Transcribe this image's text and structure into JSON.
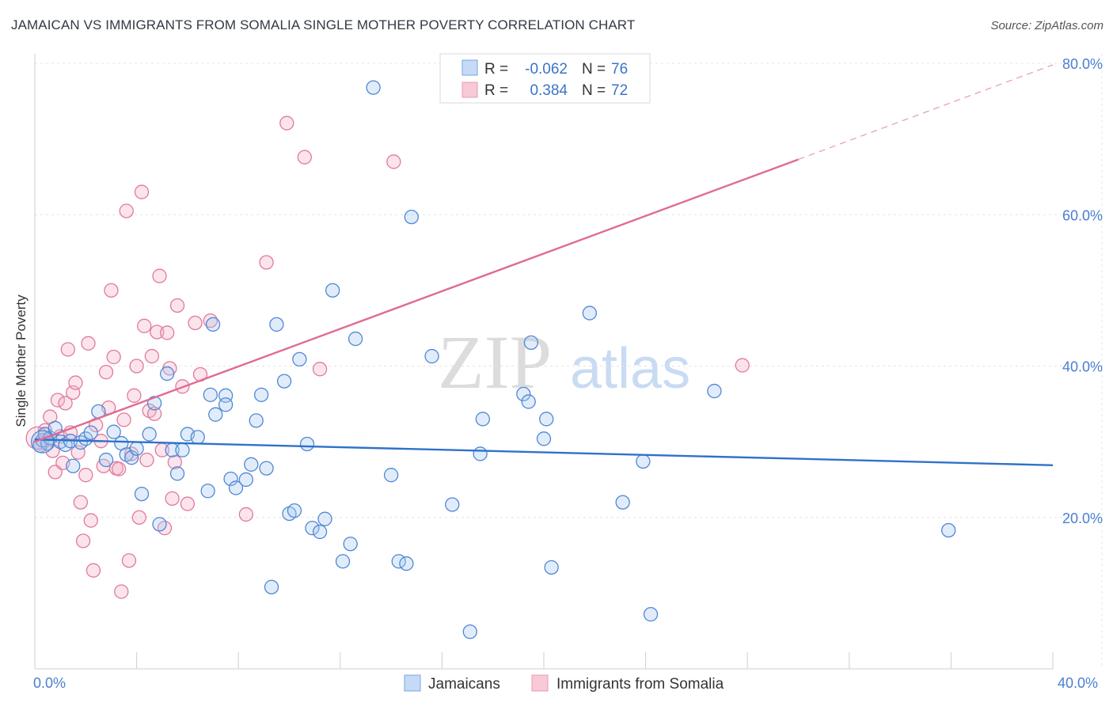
{
  "title": "JAMAICAN VS IMMIGRANTS FROM SOMALIA SINGLE MOTHER POVERTY CORRELATION CHART",
  "source": "Source: ZipAtlas.com",
  "watermark": {
    "zip": "ZIP",
    "atlas": "atlas"
  },
  "colors": {
    "jamaicans": "#5b93d8",
    "somalia": "#e986a6",
    "jamaicans_line": "#2f72c9",
    "somalia_line": "#e06b93",
    "tick": "#4a7fd0"
  },
  "legend": {
    "rows": [
      {
        "r_label": "R =",
        "r_value": "-0.062",
        "n_label": "N =",
        "n_value": "76"
      },
      {
        "r_label": "R =",
        "r_value": "0.384",
        "n_label": "N =",
        "n_value": "72"
      }
    ]
  },
  "bottom_legend": [
    "Jamaicans",
    "Immigrants from Somalia"
  ],
  "chart_data": {
    "type": "scatter",
    "title": "JAMAICAN VS IMMIGRANTS FROM SOMALIA SINGLE MOTHER POVERTY CORRELATION CHART",
    "xlabel": "",
    "ylabel": "Single Mother Poverty",
    "xlim": [
      0,
      40
    ],
    "ylim": [
      0,
      80
    ],
    "x_tick_labels": [
      "0.0%",
      "40.0%"
    ],
    "y_ticks": [
      20,
      40,
      60,
      80
    ],
    "y_tick_labels": [
      "20.0%",
      "40.0%",
      "60.0%",
      "80.0%"
    ],
    "grid": true,
    "series": [
      {
        "name": "Jamaicans",
        "color": "#5b93d8",
        "trend": {
          "x": [
            0,
            40
          ],
          "y": [
            30.3,
            26.9
          ]
        },
        "points": [
          [
            0.2,
            29.5
          ],
          [
            0.3,
            30.2
          ],
          [
            0.4,
            31.0
          ],
          [
            0.5,
            29.8
          ],
          [
            0.6,
            30.5
          ],
          [
            0.8,
            31.8
          ],
          [
            1.0,
            30.0
          ],
          [
            1.2,
            29.6
          ],
          [
            1.4,
            30.1
          ],
          [
            1.5,
            26.8
          ],
          [
            1.8,
            29.9
          ],
          [
            2.0,
            30.4
          ],
          [
            2.2,
            31.2
          ],
          [
            2.5,
            34.0
          ],
          [
            2.8,
            27.6
          ],
          [
            3.1,
            31.3
          ],
          [
            3.4,
            29.8
          ],
          [
            3.6,
            28.3
          ],
          [
            3.8,
            27.9
          ],
          [
            4.0,
            29.1
          ],
          [
            4.2,
            23.1
          ],
          [
            4.5,
            31.0
          ],
          [
            4.7,
            35.1
          ],
          [
            4.9,
            19.1
          ],
          [
            5.2,
            39.0
          ],
          [
            5.4,
            28.9
          ],
          [
            5.6,
            25.8
          ],
          [
            5.8,
            28.9
          ],
          [
            6.0,
            31.0
          ],
          [
            6.4,
            30.6
          ],
          [
            6.8,
            23.5
          ],
          [
            6.9,
            36.2
          ],
          [
            7.0,
            45.5
          ],
          [
            7.5,
            36.1
          ],
          [
            7.1,
            33.6
          ],
          [
            7.5,
            34.9
          ],
          [
            7.7,
            25.1
          ],
          [
            7.9,
            23.9
          ],
          [
            8.3,
            25.0
          ],
          [
            8.5,
            27.0
          ],
          [
            8.7,
            32.8
          ],
          [
            8.9,
            36.2
          ],
          [
            9.1,
            26.5
          ],
          [
            9.3,
            10.8
          ],
          [
            9.5,
            45.5
          ],
          [
            9.8,
            38.0
          ],
          [
            10.0,
            20.5
          ],
          [
            10.2,
            20.9
          ],
          [
            10.4,
            40.9
          ],
          [
            10.7,
            29.7
          ],
          [
            10.9,
            18.6
          ],
          [
            11.2,
            18.1
          ],
          [
            11.4,
            19.8
          ],
          [
            11.7,
            50.0
          ],
          [
            12.1,
            14.2
          ],
          [
            12.4,
            16.5
          ],
          [
            12.6,
            43.6
          ],
          [
            13.3,
            76.8
          ],
          [
            14.0,
            25.6
          ],
          [
            14.3,
            14.2
          ],
          [
            14.6,
            13.9
          ],
          [
            14.8,
            59.7
          ],
          [
            15.6,
            41.3
          ],
          [
            16.4,
            21.7
          ],
          [
            17.1,
            4.9
          ],
          [
            17.5,
            28.4
          ],
          [
            17.6,
            33.0
          ],
          [
            19.2,
            36.3
          ],
          [
            19.4,
            35.3
          ],
          [
            19.5,
            43.1
          ],
          [
            20.0,
            30.4
          ],
          [
            20.1,
            33.0
          ],
          [
            20.3,
            13.4
          ],
          [
            21.8,
            47.0
          ],
          [
            23.1,
            22.0
          ],
          [
            23.9,
            27.4
          ],
          [
            24.2,
            7.2
          ],
          [
            26.7,
            36.7
          ],
          [
            35.9,
            18.3
          ]
        ]
      },
      {
        "name": "Immigrants from Somalia",
        "color": "#e986a6",
        "trend": {
          "x": [
            0,
            30
          ],
          "y": [
            30.0,
            67.3
          ]
        },
        "trend_extension": {
          "x": [
            30,
            40
          ],
          "y": [
            67.3,
            79.8
          ]
        },
        "points": [
          [
            0.2,
            29.8
          ],
          [
            0.4,
            31.5
          ],
          [
            0.5,
            30.2
          ],
          [
            0.6,
            33.3
          ],
          [
            0.7,
            28.8
          ],
          [
            0.8,
            26.0
          ],
          [
            0.9,
            35.5
          ],
          [
            1.0,
            30.7
          ],
          [
            1.1,
            27.2
          ],
          [
            1.2,
            35.1
          ],
          [
            1.3,
            42.2
          ],
          [
            1.4,
            31.2
          ],
          [
            1.5,
            36.5
          ],
          [
            1.6,
            37.8
          ],
          [
            1.7,
            28.6
          ],
          [
            1.8,
            22.0
          ],
          [
            1.9,
            16.9
          ],
          [
            2.0,
            25.6
          ],
          [
            2.1,
            43.0
          ],
          [
            2.2,
            19.6
          ],
          [
            2.3,
            13.0
          ],
          [
            2.4,
            32.2
          ],
          [
            2.6,
            30.1
          ],
          [
            2.7,
            26.8
          ],
          [
            2.8,
            39.2
          ],
          [
            2.9,
            34.5
          ],
          [
            3.0,
            50.0
          ],
          [
            3.1,
            41.2
          ],
          [
            3.2,
            26.5
          ],
          [
            3.3,
            26.4
          ],
          [
            3.4,
            10.2
          ],
          [
            3.5,
            32.9
          ],
          [
            3.6,
            60.5
          ],
          [
            3.7,
            14.3
          ],
          [
            3.8,
            28.4
          ],
          [
            3.9,
            36.1
          ],
          [
            4.0,
            40.0
          ],
          [
            4.1,
            20.0
          ],
          [
            4.2,
            63.0
          ],
          [
            4.3,
            45.3
          ],
          [
            4.4,
            27.6
          ],
          [
            4.5,
            34.1
          ],
          [
            4.6,
            41.3
          ],
          [
            4.7,
            33.7
          ],
          [
            4.8,
            44.5
          ],
          [
            4.9,
            51.9
          ],
          [
            5.0,
            28.9
          ],
          [
            5.1,
            18.6
          ],
          [
            5.2,
            44.4
          ],
          [
            5.3,
            39.7
          ],
          [
            5.4,
            22.5
          ],
          [
            5.5,
            27.3
          ],
          [
            5.6,
            48.0
          ],
          [
            5.8,
            37.3
          ],
          [
            6.0,
            21.8
          ],
          [
            6.3,
            45.7
          ],
          [
            6.5,
            38.9
          ],
          [
            6.9,
            46.0
          ],
          [
            8.3,
            20.4
          ],
          [
            9.1,
            53.7
          ],
          [
            9.9,
            72.1
          ],
          [
            10.6,
            67.6
          ],
          [
            11.2,
            39.6
          ],
          [
            14.1,
            67.0
          ],
          [
            27.8,
            40.1
          ]
        ]
      }
    ]
  }
}
